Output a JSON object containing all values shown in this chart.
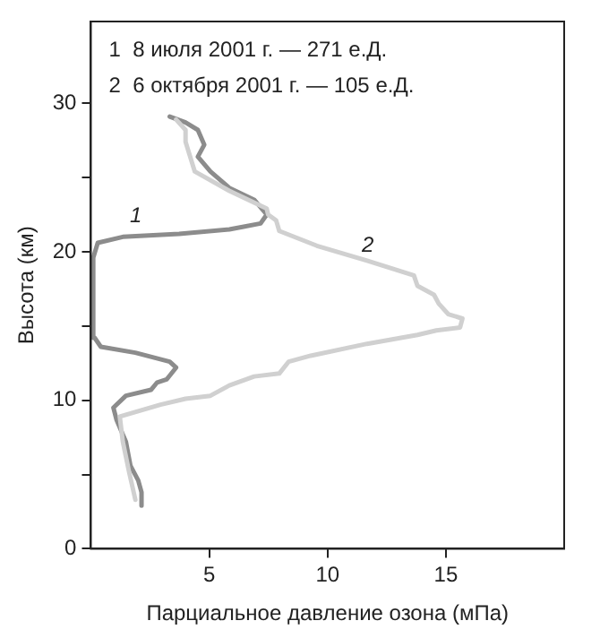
{
  "chart_data": {
    "type": "line",
    "xlabel": "Парциальное давление озона (мПа)",
    "ylabel": "Высота (км)",
    "xlim": [
      0,
      20
    ],
    "xticks": [
      5,
      10,
      15
    ],
    "ylim": [
      0,
      35.5
    ],
    "yticks": [
      0,
      {
        "value": 5,
        "label": null
      },
      10,
      {
        "value": 15,
        "label": null
      },
      20,
      {
        "value": 25,
        "label": null
      },
      30
    ],
    "grid": false,
    "legend": false,
    "marker": "none",
    "line_style": "solid",
    "annotations": [
      "1  8 июля 2001 г. — 271 е.Д.",
      "2  6 октября 2001 г. — 105 е.Д.",
      "1",
      "2"
    ],
    "series": [
      {
        "color": "#d0d0d0",
        "x": [
          1.88,
          1.61,
          1.35,
          1.22,
          2.94,
          4.0,
          5.05,
          5.85,
          6.9,
          7.96,
          8.36,
          9.29,
          11.67,
          13.8,
          14.6,
          15.6,
          15.7,
          15.1,
          14.7,
          14.5,
          13.8,
          13.65,
          11.67,
          9.55,
          7.96,
          7.83,
          7.49,
          7.43,
          5.85,
          4.39,
          4.0,
          4.0,
          3.6
        ],
        "values": [
          3.3,
          5.2,
          7.2,
          8.9,
          9.7,
          10.1,
          10.3,
          11.0,
          11.6,
          11.8,
          12.6,
          13.0,
          13.8,
          14.4,
          14.7,
          14.9,
          15.5,
          15.8,
          16.5,
          17.1,
          17.7,
          18.4,
          19.4,
          20.4,
          21.4,
          22.1,
          22.5,
          22.9,
          24.1,
          25.4,
          27.4,
          28.2,
          28.9
        ]
      },
      {
        "color": "#8c8c8c",
        "x": [
          2.14,
          2.14,
          2.0,
          1.67,
          1.48,
          1.08,
          0.95,
          1.48,
          2.54,
          2.8,
          3.2,
          3.6,
          3.33,
          1.88,
          0.42,
          0.16,
          0.1,
          0.29,
          1.35,
          3.73,
          5.85,
          7.17,
          7.43,
          6.9,
          5.85,
          5.05,
          4.52,
          4.79,
          4.52,
          4.0,
          3.33
        ],
        "values": [
          2.9,
          3.8,
          4.6,
          5.6,
          7.2,
          8.7,
          9.5,
          10.3,
          10.7,
          11.2,
          11.4,
          12.2,
          12.6,
          13.2,
          13.6,
          14.2,
          19.6,
          20.6,
          21.0,
          21.2,
          21.5,
          21.9,
          22.5,
          23.5,
          24.3,
          25.4,
          26.4,
          27.2,
          28.2,
          28.7,
          29.1
        ]
      }
    ]
  }
}
